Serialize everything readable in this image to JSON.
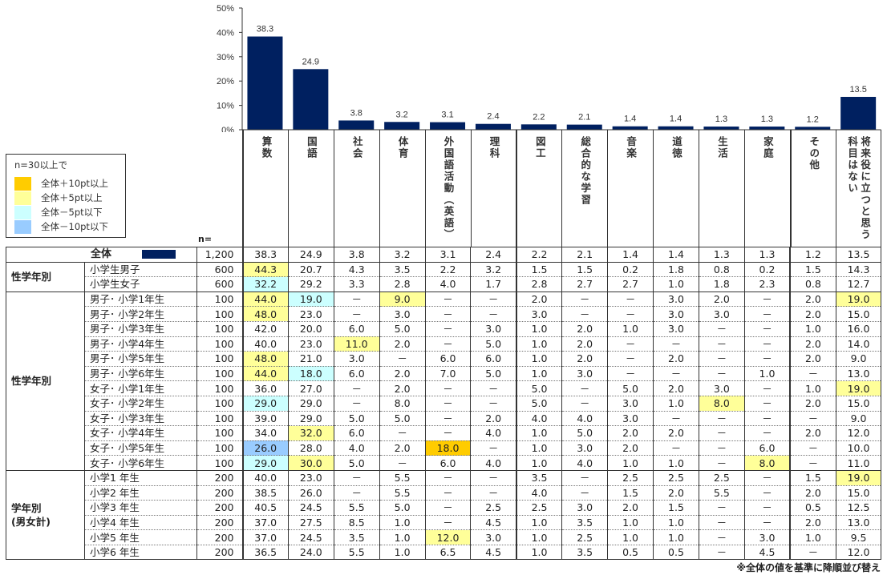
{
  "chart_data": {
    "type": "bar",
    "categories": [
      "算数",
      "国語",
      "社会",
      "体育",
      "外国語活動（英語）",
      "理科",
      "図工",
      "総合的な学習",
      "音楽",
      "道徳",
      "生活",
      "家庭",
      "その他",
      "将来役に立つと思う科目はない"
    ],
    "values": [
      38.3,
      24.9,
      3.8,
      3.2,
      3.1,
      2.4,
      2.2,
      2.1,
      1.4,
      1.4,
      1.3,
      1.3,
      1.2,
      13.5
    ],
    "value_labels": [
      "38.3",
      "24.9",
      "3.8",
      "3.2",
      "3.1",
      "2.4",
      "2.2",
      "2.1",
      "1.4",
      "1.4",
      "1.3",
      "1.3",
      "1.2",
      "13.5"
    ],
    "yticks": [
      "0%",
      "10%",
      "20%",
      "30%",
      "40%",
      "50%"
    ],
    "ylim": [
      0,
      50
    ],
    "bar_color": "#002060"
  },
  "legend": {
    "title": "n=30以上で",
    "items": [
      {
        "label": "全体＋10pt以上",
        "color": "#ffcc00"
      },
      {
        "label": "全体＋5pt以上",
        "color": "#ffff99"
      },
      {
        "label": "全体－5pt以下",
        "color": "#ccffff"
      },
      {
        "label": "全体－10pt以下",
        "color": "#99ccff"
      }
    ]
  },
  "n_label": "n=",
  "total": {
    "label": "全体",
    "n": "1,200",
    "values": [
      "38.3",
      "24.9",
      "3.8",
      "3.2",
      "3.1",
      "2.4",
      "2.2",
      "2.1",
      "1.4",
      "1.4",
      "1.3",
      "1.3",
      "1.2",
      "13.5"
    ]
  },
  "groups": [
    {
      "label": "性学年別",
      "rows": [
        {
          "label": "小学生男子",
          "n": "600",
          "values": [
            "44.3",
            "20.7",
            "4.3",
            "3.5",
            "2.2",
            "3.2",
            "1.5",
            "1.5",
            "0.2",
            "1.8",
            "0.8",
            "0.2",
            "1.5",
            "14.3"
          ],
          "hl": {
            "0": "y"
          }
        },
        {
          "label": "小学生女子",
          "n": "600",
          "values": [
            "32.2",
            "29.2",
            "3.3",
            "2.8",
            "4.0",
            "1.7",
            "2.8",
            "2.7",
            "2.7",
            "1.0",
            "1.8",
            "2.3",
            "0.8",
            "12.7"
          ],
          "hl": {
            "0": "c"
          }
        }
      ]
    },
    {
      "label": "性学年別",
      "rows": [
        {
          "label": "男子･ 小学1年生",
          "n": "100",
          "values": [
            "44.0",
            "19.0",
            "－",
            "9.0",
            "－",
            "－",
            "2.0",
            "－",
            "－",
            "3.0",
            "2.0",
            "－",
            "2.0",
            "19.0"
          ],
          "hl": {
            "0": "y",
            "1": "c",
            "3": "y",
            "13": "y"
          }
        },
        {
          "label": "男子･ 小学2年生",
          "n": "100",
          "values": [
            "48.0",
            "23.0",
            "－",
            "3.0",
            "－",
            "－",
            "3.0",
            "－",
            "－",
            "3.0",
            "3.0",
            "－",
            "2.0",
            "15.0"
          ],
          "hl": {
            "0": "y"
          }
        },
        {
          "label": "男子･ 小学3年生",
          "n": "100",
          "values": [
            "42.0",
            "20.0",
            "6.0",
            "5.0",
            "－",
            "3.0",
            "1.0",
            "2.0",
            "1.0",
            "3.0",
            "－",
            "－",
            "1.0",
            "16.0"
          ],
          "hl": {}
        },
        {
          "label": "男子･ 小学4年生",
          "n": "100",
          "values": [
            "40.0",
            "23.0",
            "11.0",
            "2.0",
            "－",
            "5.0",
            "1.0",
            "2.0",
            "－",
            "－",
            "－",
            "－",
            "2.0",
            "14.0"
          ],
          "hl": {
            "2": "y"
          }
        },
        {
          "label": "男子･ 小学5年生",
          "n": "100",
          "values": [
            "48.0",
            "21.0",
            "3.0",
            "－",
            "6.0",
            "6.0",
            "1.0",
            "2.0",
            "－",
            "2.0",
            "－",
            "－",
            "2.0",
            "9.0"
          ],
          "hl": {
            "0": "y"
          }
        },
        {
          "label": "男子･ 小学6年生",
          "n": "100",
          "values": [
            "44.0",
            "18.0",
            "6.0",
            "2.0",
            "7.0",
            "5.0",
            "1.0",
            "3.0",
            "－",
            "－",
            "－",
            "1.0",
            "－",
            "13.0"
          ],
          "hl": {
            "0": "y",
            "1": "c"
          }
        },
        {
          "label": "女子･ 小学1年生",
          "n": "100",
          "values": [
            "36.0",
            "27.0",
            "－",
            "2.0",
            "－",
            "－",
            "5.0",
            "－",
            "5.0",
            "2.0",
            "3.0",
            "－",
            "1.0",
            "19.0"
          ],
          "hl": {
            "13": "y"
          }
        },
        {
          "label": "女子･ 小学2年生",
          "n": "100",
          "values": [
            "29.0",
            "29.0",
            "－",
            "8.0",
            "－",
            "－",
            "5.0",
            "－",
            "3.0",
            "1.0",
            "8.0",
            "－",
            "2.0",
            "15.0"
          ],
          "hl": {
            "0": "c",
            "10": "y"
          }
        },
        {
          "label": "女子･ 小学3年生",
          "n": "100",
          "values": [
            "39.0",
            "29.0",
            "5.0",
            "5.0",
            "－",
            "2.0",
            "4.0",
            "4.0",
            "3.0",
            "－",
            "－",
            "－",
            "－",
            "9.0"
          ],
          "hl": {}
        },
        {
          "label": "女子･ 小学4年生",
          "n": "100",
          "values": [
            "34.0",
            "32.0",
            "6.0",
            "－",
            "－",
            "4.0",
            "1.0",
            "5.0",
            "2.0",
            "2.0",
            "－",
            "－",
            "2.0",
            "12.0"
          ],
          "hl": {
            "1": "y"
          }
        },
        {
          "label": "女子･ 小学5年生",
          "n": "100",
          "values": [
            "26.0",
            "28.0",
            "4.0",
            "2.0",
            "18.0",
            "－",
            "1.0",
            "3.0",
            "2.0",
            "－",
            "－",
            "6.0",
            "－",
            "10.0"
          ],
          "hl": {
            "0": "b",
            "4": "o"
          }
        },
        {
          "label": "女子･ 小学6年生",
          "n": "100",
          "values": [
            "29.0",
            "30.0",
            "5.0",
            "－",
            "6.0",
            "4.0",
            "1.0",
            "4.0",
            "1.0",
            "1.0",
            "－",
            "8.0",
            "－",
            "11.0"
          ],
          "hl": {
            "0": "c",
            "1": "y",
            "11": "y"
          }
        }
      ]
    },
    {
      "label": "学年別\n(男女計)",
      "rows": [
        {
          "label": "小学1 年生",
          "n": "200",
          "values": [
            "40.0",
            "23.0",
            "－",
            "5.5",
            "－",
            "－",
            "3.5",
            "－",
            "2.5",
            "2.5",
            "2.5",
            "－",
            "1.5",
            "19.0"
          ],
          "hl": {
            "13": "y"
          }
        },
        {
          "label": "小学2 年生",
          "n": "200",
          "values": [
            "38.5",
            "26.0",
            "－",
            "5.5",
            "－",
            "－",
            "4.0",
            "－",
            "1.5",
            "2.0",
            "5.5",
            "－",
            "2.0",
            "15.0"
          ],
          "hl": {}
        },
        {
          "label": "小学3 年生",
          "n": "200",
          "values": [
            "40.5",
            "24.5",
            "5.5",
            "5.0",
            "－",
            "2.5",
            "2.5",
            "3.0",
            "2.0",
            "1.5",
            "－",
            "－",
            "0.5",
            "12.5"
          ],
          "hl": {}
        },
        {
          "label": "小学4 年生",
          "n": "200",
          "values": [
            "37.0",
            "27.5",
            "8.5",
            "1.0",
            "－",
            "4.5",
            "1.0",
            "3.5",
            "1.0",
            "1.0",
            "－",
            "－",
            "2.0",
            "13.0"
          ],
          "hl": {}
        },
        {
          "label": "小学5 年生",
          "n": "200",
          "values": [
            "37.0",
            "24.5",
            "3.5",
            "1.0",
            "12.0",
            "3.0",
            "1.0",
            "2.5",
            "1.0",
            "1.0",
            "－",
            "3.0",
            "1.0",
            "9.5"
          ],
          "hl": {
            "4": "y"
          }
        },
        {
          "label": "小学6 年生",
          "n": "200",
          "values": [
            "36.5",
            "24.0",
            "5.5",
            "1.0",
            "6.5",
            "4.5",
            "1.0",
            "3.5",
            "0.5",
            "0.5",
            "－",
            "4.5",
            "－",
            "12.0"
          ],
          "hl": {}
        }
      ]
    }
  ],
  "note": "※全体の値を基準に降順並び替え"
}
